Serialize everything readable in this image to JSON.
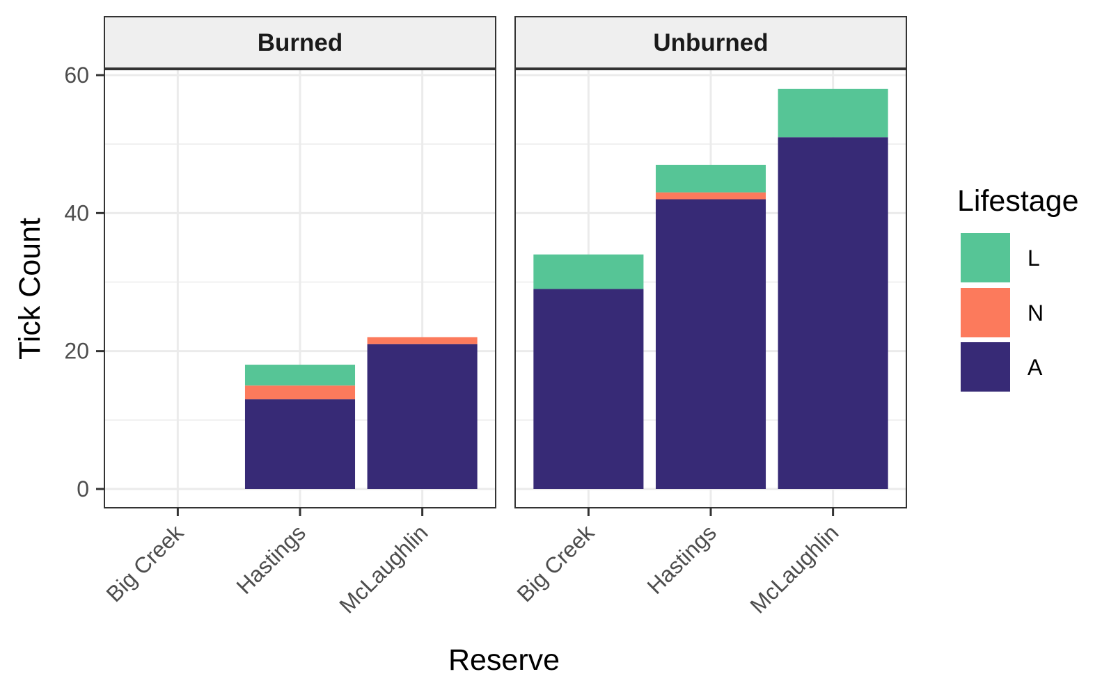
{
  "chart_data": {
    "type": "bar",
    "stacked": true,
    "xlabel": "Reserve",
    "ylabel": "Tick Count",
    "ylim": [
      0,
      60
    ],
    "y_ticks": [
      "0",
      "20",
      "40",
      "60"
    ],
    "grid": true,
    "categories": [
      "Big Creek",
      "Hastings",
      "McLaughlin"
    ],
    "facets": [
      {
        "label": "Burned",
        "series": [
          {
            "name": "A",
            "values": [
              0,
              13,
              21
            ]
          },
          {
            "name": "N",
            "values": [
              0,
              2,
              1
            ]
          },
          {
            "name": "L",
            "values": [
              0,
              3,
              0
            ]
          }
        ]
      },
      {
        "label": "Unburned",
        "series": [
          {
            "name": "A",
            "values": [
              29,
              42,
              51
            ]
          },
          {
            "name": "N",
            "values": [
              0,
              1,
              0
            ]
          },
          {
            "name": "L",
            "values": [
              5,
              4,
              7
            ]
          }
        ]
      }
    ],
    "legend": {
      "title": "Lifestage",
      "position": "right",
      "entries": [
        {
          "name": "L",
          "color": "#56c596"
        },
        {
          "name": "N",
          "color": "#fc7a5c"
        },
        {
          "name": "A",
          "color": "#372a76"
        }
      ]
    },
    "colors": {
      "A": "#372a76",
      "N": "#fc7a5c",
      "L": "#56c596"
    }
  }
}
